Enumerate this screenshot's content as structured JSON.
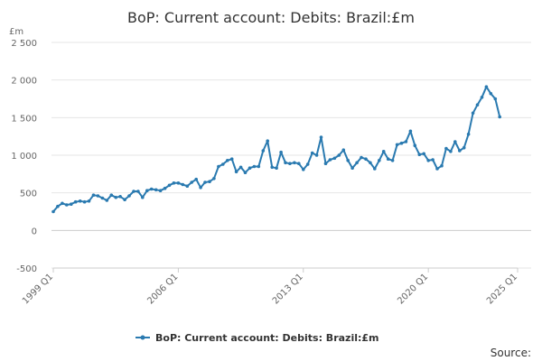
{
  "chart_data": {
    "type": "line",
    "title": "BoP: Current account: Debits: Brazil:£m",
    "unit_label": "£m",
    "ylim": [
      -500,
      2500
    ],
    "y_ticks": [
      "2 500",
      "2 000",
      "1 500",
      "1 000",
      "500",
      "0",
      "-500"
    ],
    "y_tick_values": [
      2500,
      2000,
      1500,
      1000,
      500,
      0,
      -500
    ],
    "x_ticks": [
      "1999 Q1",
      "2006 Q1",
      "2013 Q1",
      "2020 Q1",
      "2025 Q1"
    ],
    "x_tick_quarter_index": [
      0,
      28,
      56,
      84,
      104
    ],
    "grid": true,
    "legend_position": "bottom",
    "series": [
      {
        "name": "BoP: Current account: Debits: Brazil:£m",
        "color": "#2a7ab0",
        "start": "1999 Q1",
        "values": [
          250,
          320,
          360,
          340,
          350,
          380,
          390,
          380,
          390,
          470,
          460,
          430,
          400,
          470,
          440,
          450,
          410,
          460,
          520,
          520,
          440,
          530,
          550,
          540,
          530,
          560,
          600,
          630,
          630,
          610,
          590,
          640,
          680,
          570,
          640,
          650,
          690,
          850,
          880,
          930,
          950,
          780,
          840,
          770,
          830,
          850,
          850,
          1060,
          1190,
          840,
          830,
          1040,
          900,
          890,
          900,
          890,
          810,
          880,
          1030,
          1000,
          1240,
          890,
          940,
          960,
          1000,
          1070,
          930,
          830,
          900,
          970,
          950,
          900,
          820,
          930,
          1050,
          950,
          930,
          1140,
          1160,
          1180,
          1320,
          1130,
          1010,
          1020,
          930,
          940,
          820,
          860,
          1090,
          1050,
          1180,
          1060,
          1100,
          1280,
          1560,
          1670,
          1770,
          1910,
          1820,
          1750,
          1510
        ]
      }
    ]
  },
  "legend": {
    "label": "BoP: Current account: Debits: Brazil:£m"
  },
  "footer": {
    "source": "Source:"
  }
}
